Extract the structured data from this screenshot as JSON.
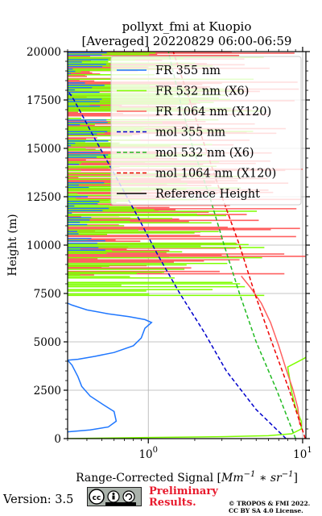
{
  "chart_data": {
    "type": "line",
    "title_line1": "pollyxt_fmi at Kuopio",
    "title_line2": "[Averaged] 20220829 06:00-06:59",
    "xlabel_prefix": "Range-Corrected Signal [",
    "xlabel_math": "Mm",
    "xlabel_exp1": "−1",
    "xlabel_mid": " ∗ ",
    "xlabel_math2": "sr",
    "xlabel_exp2": "−1",
    "xlabel_suffix": "]",
    "ylabel": "Height (m)",
    "xscale": "log",
    "xlim": [
      0.3,
      10.5
    ],
    "ylim": [
      0,
      20000
    ],
    "xticks": [
      {
        "value": 1,
        "base": "10",
        "exp": "0"
      },
      {
        "value": 10,
        "base": "10",
        "exp": "1"
      }
    ],
    "yticks": [
      0,
      2500,
      5000,
      7500,
      10000,
      12500,
      15000,
      17500,
      20000
    ],
    "grid": true,
    "legend_position": "top-right",
    "series": [
      {
        "name": "FR 355 nm",
        "color": "#1f77ff",
        "style": "solid",
        "points": [
          [
            0.3,
            350
          ],
          [
            0.42,
            450
          ],
          [
            0.55,
            600
          ],
          [
            0.62,
            900
          ],
          [
            0.6,
            1400
          ],
          [
            0.5,
            1800
          ],
          [
            0.42,
            2200
          ],
          [
            0.37,
            2700
          ],
          [
            0.35,
            3200
          ],
          [
            0.32,
            3800
          ],
          [
            0.3,
            4050
          ],
          [
            0.35,
            4100
          ],
          [
            0.45,
            4250
          ],
          [
            0.6,
            4450
          ],
          [
            0.8,
            4800
          ],
          [
            0.9,
            5200
          ],
          [
            0.95,
            5700
          ],
          [
            1.05,
            6000
          ],
          [
            0.95,
            6150
          ],
          [
            0.75,
            6300
          ],
          [
            0.55,
            6450
          ],
          [
            0.4,
            6650
          ],
          [
            0.32,
            6900
          ],
          [
            0.3,
            7000
          ]
        ]
      },
      {
        "name": "FR 532 nm (X6)",
        "color": "#7fff00",
        "style": "solid",
        "points": [
          [
            0.3,
            0
          ],
          [
            1.0,
            60
          ],
          [
            3.0,
            100
          ],
          [
            6.0,
            150
          ],
          [
            8.5,
            250
          ],
          [
            9.8,
            500
          ],
          [
            9.8,
            900
          ],
          [
            9.0,
            1600
          ],
          [
            8.5,
            2400
          ],
          [
            8.2,
            3200
          ],
          [
            8.0,
            3700
          ],
          [
            10.0,
            4100
          ],
          [
            10.5,
            4200
          ]
        ]
      },
      {
        "name": "FR 1064 nm (X120)",
        "color": "#ff6060",
        "style": "solid",
        "points": [
          [
            9.6,
            700
          ],
          [
            9.3,
            1600
          ],
          [
            8.6,
            2600
          ],
          [
            7.8,
            3600
          ],
          [
            7.0,
            4800
          ],
          [
            6.2,
            6000
          ],
          [
            5.4,
            7000
          ],
          [
            4.6,
            7800
          ],
          [
            4.0,
            8400
          ]
        ]
      },
      {
        "name": "mol 355 nm",
        "color": "#0000cc",
        "style": "dashed",
        "points": [
          [
            7.8,
            0
          ],
          [
            5.0,
            1500
          ],
          [
            3.2,
            3500
          ],
          [
            2.3,
            5500
          ],
          [
            1.6,
            7500
          ],
          [
            1.15,
            9500
          ],
          [
            0.85,
            11500
          ],
          [
            0.62,
            13500
          ],
          [
            0.45,
            15500
          ],
          [
            0.33,
            17500
          ],
          [
            0.3,
            18000
          ]
        ]
      },
      {
        "name": "mol 532 nm (X6)",
        "color": "#22bb22",
        "style": "dashed",
        "points": [
          [
            9.0,
            0
          ],
          [
            6.8,
            2500
          ],
          [
            5.0,
            5000
          ],
          [
            3.9,
            7500
          ],
          [
            3.1,
            10000
          ],
          [
            2.5,
            12500
          ],
          [
            1.95,
            15000
          ],
          [
            1.6,
            17500
          ],
          [
            1.35,
            20000
          ]
        ]
      },
      {
        "name": "mol 1064 nm (X120)",
        "color": "#ee0000",
        "style": "dashed",
        "points": [
          [
            10.4,
            0
          ],
          [
            8.2,
            2500
          ],
          [
            6.3,
            5000
          ],
          [
            4.9,
            7500
          ],
          [
            3.9,
            10000
          ],
          [
            3.0,
            12500
          ],
          [
            2.35,
            15000
          ],
          [
            1.85,
            17500
          ],
          [
            1.45,
            20000
          ]
        ]
      },
      {
        "name": "Reference Height",
        "color": "#000000",
        "style": "solid",
        "points": []
      }
    ]
  },
  "footer": {
    "version": "Version: 3.5",
    "cc_icons": "cc-by-sa-icon",
    "preliminary_line1": "Preliminary",
    "preliminary_line2": "Results.",
    "copyright_line1": "© TROPOS & FMI 2022.",
    "copyright_line2": "CC BY SA 4.0 License."
  }
}
